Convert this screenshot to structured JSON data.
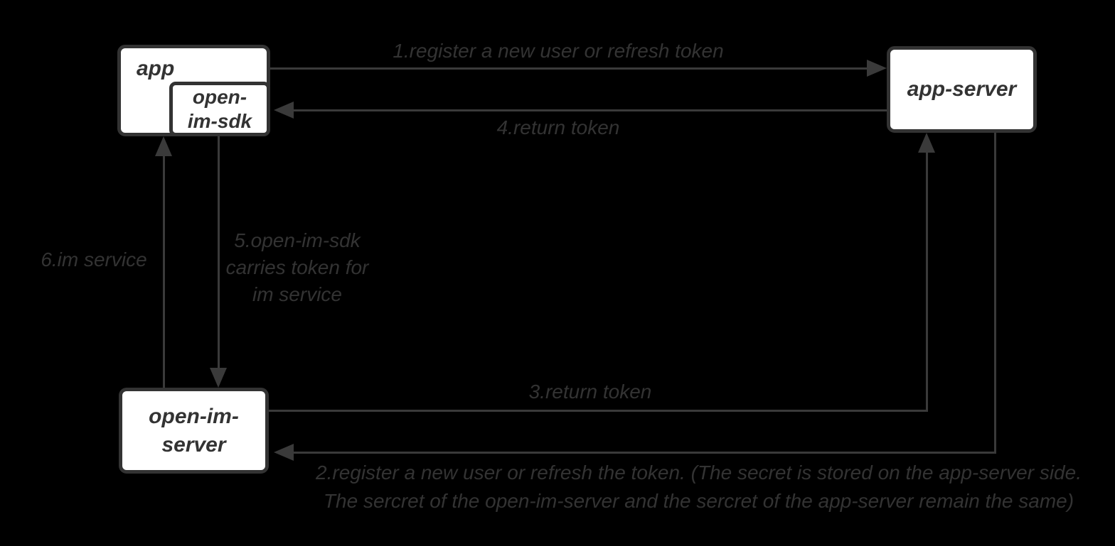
{
  "colors": {
    "background": "#000000",
    "node_fill": "#ffffff",
    "node_border": "#333333",
    "line": "#3a3a3a",
    "label_text": "#333333"
  },
  "nodes": {
    "app": {
      "label": "app"
    },
    "open_im_sdk": {
      "label": "open-\nim-sdk"
    },
    "app_server": {
      "label": "app-server"
    },
    "open_im_server": {
      "label": "open-im-\nserver"
    }
  },
  "edges": {
    "e1": {
      "from": "app",
      "to": "app-server",
      "label": "1.register a new user or refresh token"
    },
    "e2": {
      "from": "app-server",
      "to": "open-im-server",
      "label": "2.register a new user or refresh the token. (The secret is stored on the app-server side.\nThe sercret of the open-im-server and the sercret of the app-server remain the same)"
    },
    "e3": {
      "from": "open-im-server",
      "to": "app-server",
      "label": "3.return token"
    },
    "e4": {
      "from": "app-server",
      "to": "open-im-sdk",
      "label": "4.return token"
    },
    "e5": {
      "from": "open-im-sdk",
      "to": "open-im-server",
      "label": "5.open-im-sdk\ncarries token for\nim service"
    },
    "e6": {
      "from": "open-im-server",
      "to": "app",
      "label": "6.im service"
    }
  }
}
